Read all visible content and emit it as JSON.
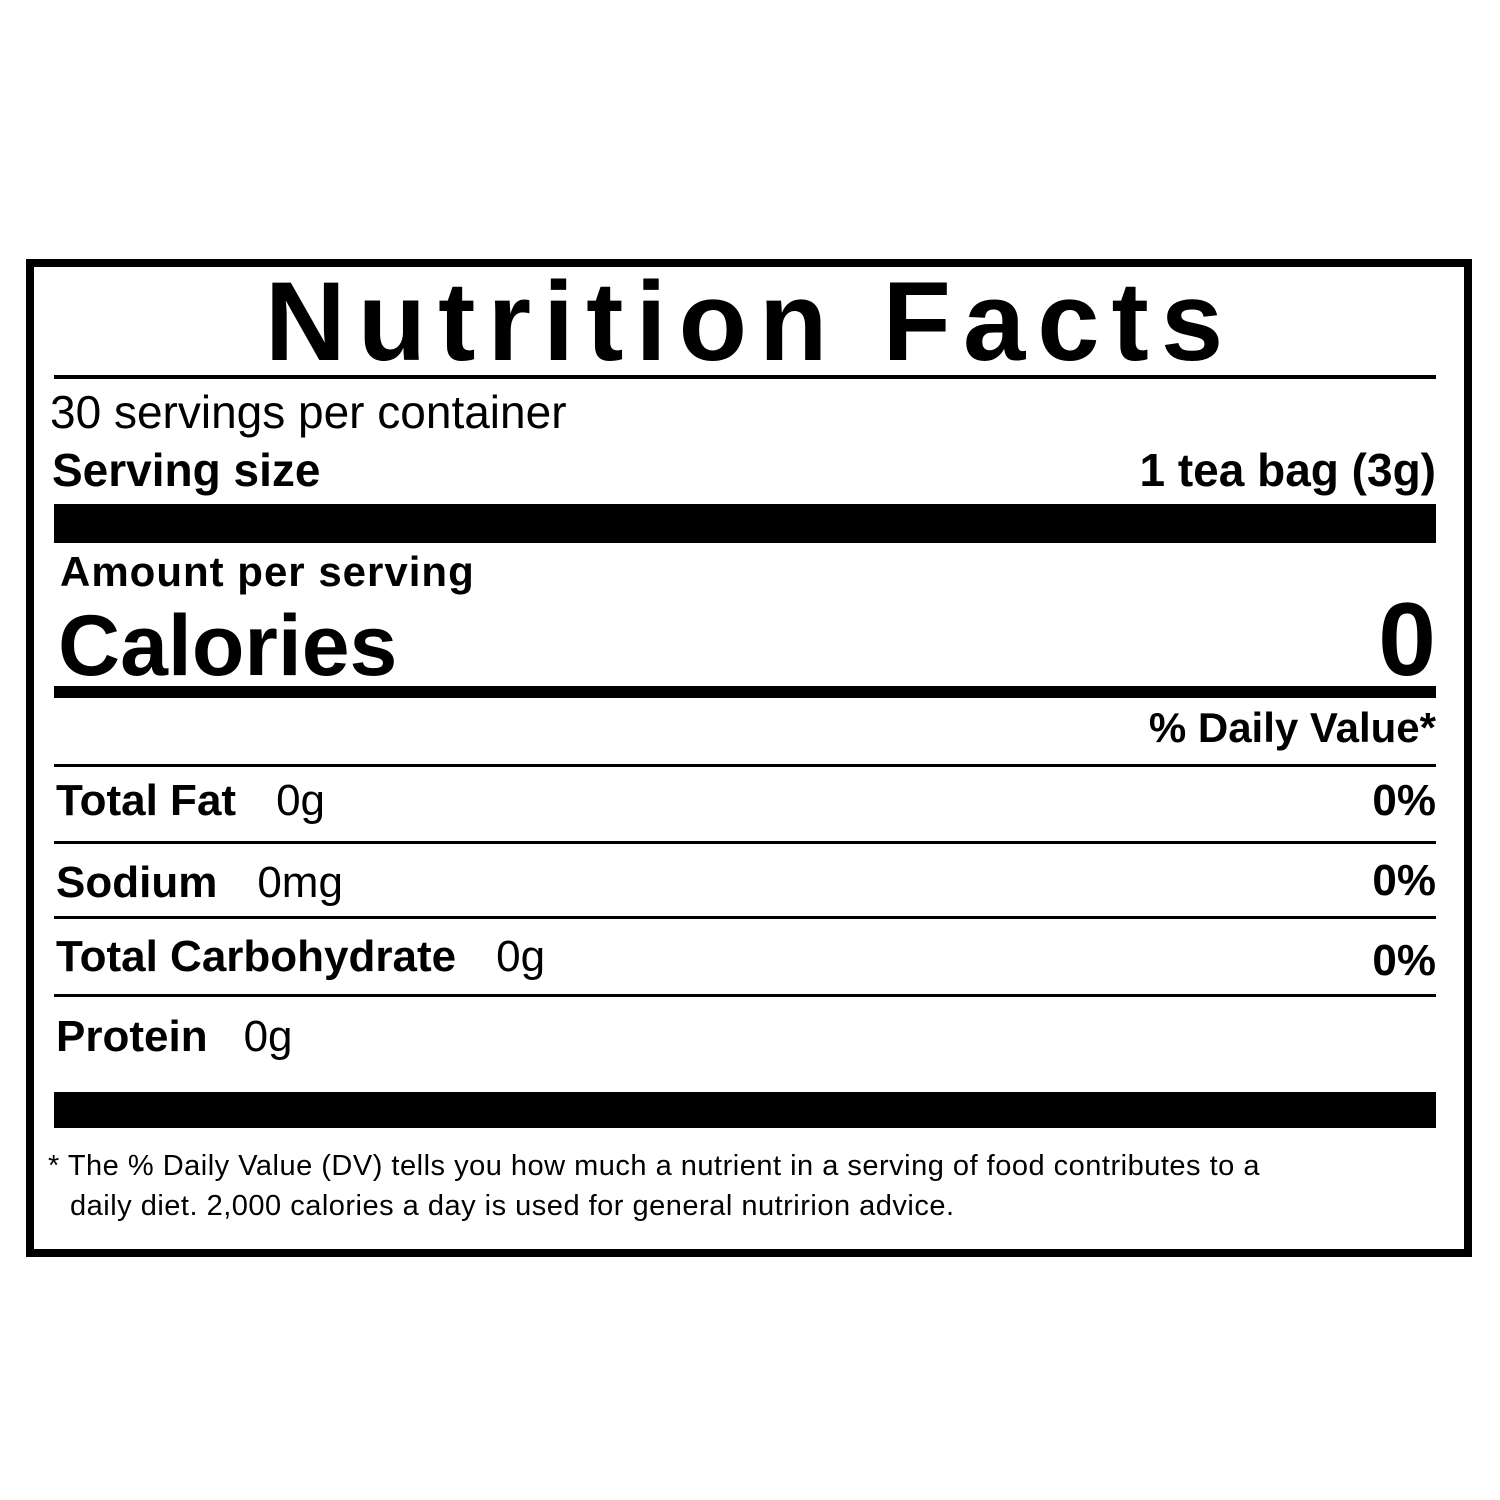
{
  "title": "Nutrition Facts",
  "servings_per_container": "30 servings per container",
  "serving_size": {
    "label": "Serving size",
    "value": "1 tea bag (3g)"
  },
  "amount_per_serving": "Amount per serving",
  "calories": {
    "label": "Calories",
    "value": "0"
  },
  "daily_value_header": "% Daily Value*",
  "nutrients": [
    {
      "name": "Total Fat",
      "amount": "0g",
      "dv": "0%"
    },
    {
      "name": "Sodium",
      "amount": "0mg",
      "dv": "0%"
    },
    {
      "name": "Total Carbohydrate",
      "amount": "0g",
      "dv": "0%"
    },
    {
      "name": "Protein",
      "amount": "0g",
      "dv": ""
    }
  ],
  "footnote": {
    "line1": "* The % Daily Value (DV) tells you how much a nutrient in a serving of food contributes to a",
    "line2": "daily diet. 2,000 calories a day is used for general nutririon advice."
  }
}
